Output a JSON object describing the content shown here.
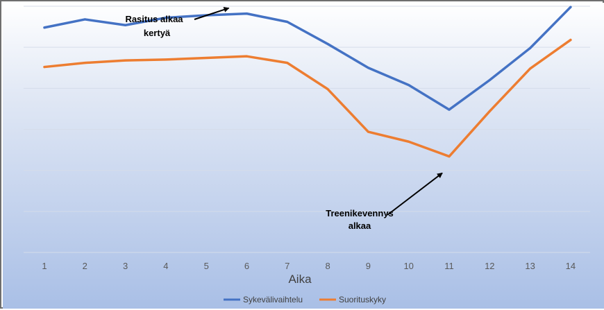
{
  "chart_data": {
    "type": "line",
    "x": [
      1,
      2,
      3,
      4,
      5,
      6,
      7,
      8,
      9,
      10,
      11,
      12,
      13,
      14
    ],
    "xlabel": "Aika",
    "ylabel": "",
    "title": "",
    "ylim": [
      0,
      300
    ],
    "grid": true,
    "legend": "bottom",
    "series": [
      {
        "name": "Sykevälivaihtelu",
        "color": "#4472C4",
        "values": [
          274,
          284,
          277,
          286,
          289,
          291,
          281,
          254,
          225,
          204,
          174,
          210,
          249,
          299
        ]
      },
      {
        "name": "Suorituskyky",
        "color": "#ED7D31",
        "values": [
          226,
          231,
          234,
          235,
          237,
          239,
          231,
          199,
          147,
          135,
          117,
          172,
          224,
          259
        ]
      }
    ],
    "annotations": [
      {
        "lines": [
          "Rasitus alkaa",
          "kertyä"
        ],
        "points_to": {
          "x": 6,
          "series": "Sykevälivaihtelu"
        }
      },
      {
        "lines": [
          "Treenikevennys",
          "alkaa"
        ],
        "points_to": {
          "x": 11,
          "series": "Suorituskyky"
        }
      }
    ]
  }
}
